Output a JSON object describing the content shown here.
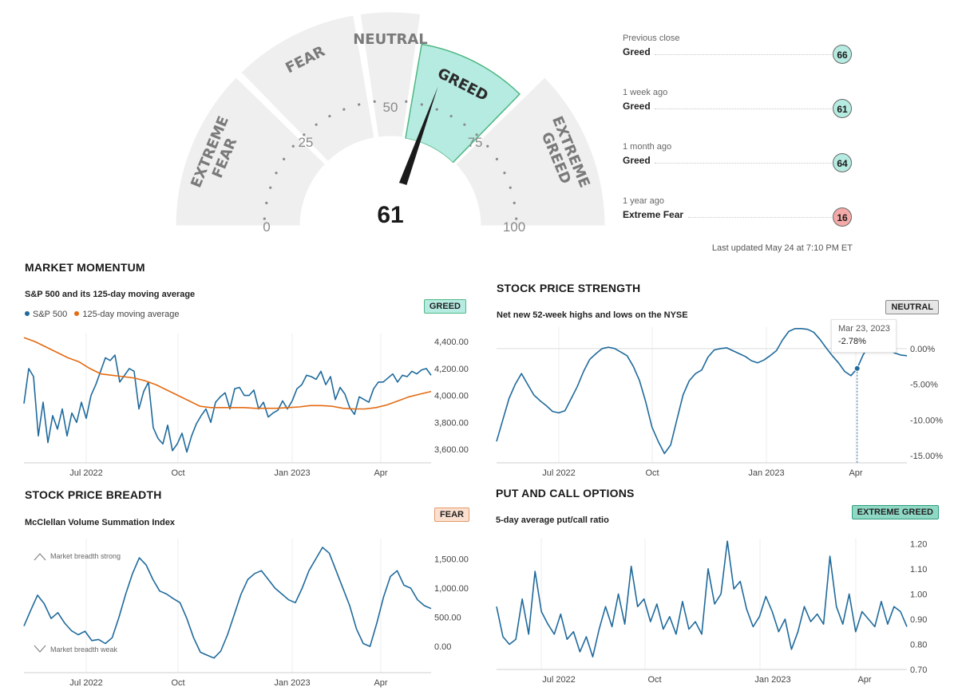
{
  "gauge": {
    "score": "61",
    "score_value": 61,
    "segments": [
      {
        "label": "EXTREME FEAR",
        "lines": [
          "EXTREME",
          "FEAR"
        ],
        "from": 0,
        "to": 25,
        "active": false
      },
      {
        "label": "FEAR",
        "lines": [
          "FEAR"
        ],
        "from": 25,
        "to": 45,
        "active": false
      },
      {
        "label": "NEUTRAL",
        "lines": [
          "NEUTRAL"
        ],
        "from": 45,
        "to": 55,
        "active": false
      },
      {
        "label": "GREED",
        "lines": [
          "GREED"
        ],
        "from": 55,
        "to": 75,
        "active": true
      },
      {
        "label": "EXTREME GREED",
        "lines": [
          "EXTREME",
          "GREED"
        ],
        "from": 75,
        "to": 100,
        "active": false
      }
    ],
    "ticks": [
      {
        "label": "0",
        "value": 0
      },
      {
        "label": "25",
        "value": 25
      },
      {
        "label": "50",
        "value": 50
      },
      {
        "label": "75",
        "value": 75
      },
      {
        "label": "100",
        "value": 100
      }
    ],
    "colors": {
      "segment": "#efefef",
      "active": "#b6ebe1",
      "active_border": "#4fb783",
      "needle": "#1a1a1a"
    }
  },
  "history": [
    {
      "when": "Previous close",
      "rating": "Greed",
      "score": "66",
      "color": "#b6ebe1"
    },
    {
      "when": "1 week ago",
      "rating": "Greed",
      "score": "61",
      "color": "#b6ebe1"
    },
    {
      "when": "1 month ago",
      "rating": "Greed",
      "score": "64",
      "color": "#b6ebe1"
    },
    {
      "when": "1 year ago",
      "rating": "Extreme Fear",
      "score": "16",
      "color": "#f3aaa8"
    }
  ],
  "last_updated": "Last updated May 24 at 7:10 PM ET",
  "panels": {
    "momentum": {
      "title": "MARKET MOMENTUM",
      "subtitle": "S&P 500 and its 125-day moving average",
      "badge": "GREED",
      "badge_bg": "#b6ebe1",
      "badge_border": "#4fb783"
    },
    "strength": {
      "title": "STOCK PRICE STRENGTH",
      "subtitle": "Net new 52-week highs and lows on the NYSE",
      "badge": "NEUTRAL",
      "badge_bg": "#e6e6e6",
      "badge_border": "#8a8a8a"
    },
    "breadth": {
      "title": "STOCK PRICE BREADTH",
      "subtitle": "McClellan Volume Summation Index",
      "badge": "FEAR",
      "badge_bg": "#fbe0cf",
      "badge_border": "#e39a6c"
    },
    "options": {
      "title": "PUT AND CALL OPTIONS",
      "subtitle": "5-day average put/call ratio",
      "badge": "EXTREME GREED",
      "badge_bg": "#8fd9c4",
      "badge_border": "#2f9e7d"
    }
  },
  "tooltip": {
    "date": "Mar 23, 2023",
    "value": "-2.78%"
  },
  "chart_data": [
    {
      "type": "line",
      "xlabel": "",
      "ylabel": "",
      "x_ticks": [
        "Jul 2022",
        "Oct",
        "Jan 2023",
        "Apr"
      ],
      "y_ticks": [
        "3,600.00",
        "3,800.00",
        "4,000.00",
        "4,200.00",
        "4,400.00"
      ],
      "ylim": [
        3500,
        4460
      ],
      "legend": [
        "S&P 500",
        "125-day moving average"
      ],
      "legend_position": "top-left",
      "grid": false,
      "series": [
        {
          "name": "S&P 500",
          "color": "#1f6a9c",
          "values": [
            3940,
            4200,
            4140,
            3700,
            3950,
            3650,
            3850,
            3750,
            3900,
            3700,
            3870,
            3800,
            3950,
            3830,
            4000,
            4080,
            4180,
            4280,
            4260,
            4300,
            4100,
            4150,
            4200,
            4180,
            3900,
            4030,
            4100,
            3760,
            3680,
            3640,
            3780,
            3590,
            3640,
            3720,
            3580,
            3700,
            3790,
            3850,
            3900,
            3800,
            3950,
            3990,
            4020,
            3900,
            4050,
            4060,
            4000,
            4000,
            4040,
            3900,
            3950,
            3840,
            3870,
            3890,
            3960,
            3900,
            3960,
            4050,
            4080,
            4150,
            4140,
            4120,
            4180,
            4080,
            4140,
            3970,
            4060,
            4010,
            3910,
            3860,
            3990,
            3970,
            3950,
            4050,
            4100,
            4100,
            4130,
            4160,
            4100,
            4150,
            4140,
            4180,
            4160,
            4190,
            4200,
            4150
          ]
        },
        {
          "name": "125-day moving average",
          "color": "#e36b12",
          "values": [
            4430,
            4400,
            4360,
            4320,
            4280,
            4250,
            4200,
            4160,
            4150,
            4140,
            4130,
            4110,
            4080,
            4040,
            4000,
            3960,
            3920,
            3910,
            3910,
            3910,
            3910,
            3905,
            3905,
            3905,
            3910,
            3915,
            3925,
            3925,
            3920,
            3905,
            3900,
            3900,
            3910,
            3930,
            3960,
            3990,
            4010,
            4030
          ]
        }
      ]
    },
    {
      "type": "line",
      "xlabel": "",
      "ylabel": "",
      "x_ticks": [
        "Jul 2022",
        "Oct",
        "Jan 2023",
        "Apr"
      ],
      "y_ticks": [
        "0.00%",
        "-5.00%",
        "-10.00%",
        "-15.00%"
      ],
      "ylim": [
        -16,
        3
      ],
      "grid": false,
      "series": [
        {
          "name": "",
          "color": "#1f6a9c",
          "values": [
            -13,
            -10,
            -7,
            -5,
            -3.5,
            -5,
            -6.5,
            -7.3,
            -8,
            -8.8,
            -9,
            -8.7,
            -7,
            -5.3,
            -3.2,
            -1.5,
            -0.7,
            0,
            0.2,
            0,
            -0.5,
            -1,
            -2.5,
            -4.5,
            -7.5,
            -11,
            -13,
            -14.7,
            -13.5,
            -10,
            -6.5,
            -4.5,
            -3.5,
            -3,
            -1.2,
            -0.2,
            0,
            0.1,
            -0.3,
            -0.7,
            -1.1,
            -1.7,
            -2,
            -1.6,
            -1,
            -0.3,
            1.2,
            2.4,
            2.8,
            2.8,
            2.7,
            2.3,
            1.3,
            0.1,
            -1,
            -2,
            -3.2,
            -3.8,
            -2.78,
            -0.8,
            0.4,
            0.6,
            0.3,
            -0.2,
            -0.6,
            -0.9,
            -1
          ]
        }
      ]
    },
    {
      "type": "line",
      "xlabel": "",
      "ylabel": "",
      "x_ticks": [
        "Jul 2022",
        "Oct",
        "Jan 2023",
        "Apr"
      ],
      "y_ticks": [
        "0.00",
        "500.00",
        "1,000.00",
        "1,500.00"
      ],
      "ylim": [
        -450,
        1850
      ],
      "annotations": [
        "Market breadth strong",
        "Market breadth weak"
      ],
      "grid": false,
      "series": [
        {
          "name": "",
          "color": "#1f6a9c",
          "values": [
            350,
            620,
            880,
            730,
            480,
            580,
            400,
            270,
            200,
            260,
            100,
            120,
            50,
            150,
            500,
            900,
            1250,
            1520,
            1400,
            1150,
            950,
            900,
            820,
            750,
            480,
            150,
            -100,
            -150,
            -200,
            -80,
            200,
            550,
            900,
            1150,
            1250,
            1300,
            1150,
            1000,
            900,
            800,
            750,
            1000,
            1300,
            1500,
            1700,
            1600,
            1300,
            1000,
            700,
            300,
            50,
            0,
            400,
            850,
            1200,
            1300,
            1050,
            1000,
            800,
            700,
            650
          ]
        }
      ]
    },
    {
      "type": "line",
      "xlabel": "",
      "ylabel": "",
      "x_ticks": [
        "Jul 2022",
        "Oct",
        "Jan 2023",
        "Apr"
      ],
      "y_ticks": [
        "0.70",
        "0.80",
        "0.90",
        "1.00",
        "1.10",
        "1.20"
      ],
      "ylim": [
        0.7,
        1.22
      ],
      "grid": false,
      "series": [
        {
          "name": "",
          "color": "#1f6a9c",
          "values": [
            0.95,
            0.83,
            0.8,
            0.82,
            0.98,
            0.84,
            1.09,
            0.93,
            0.88,
            0.84,
            0.92,
            0.82,
            0.85,
            0.77,
            0.83,
            0.75,
            0.86,
            0.95,
            0.87,
            1.0,
            0.88,
            1.11,
            0.95,
            0.98,
            0.89,
            0.96,
            0.86,
            0.91,
            0.84,
            0.97,
            0.86,
            0.89,
            0.84,
            1.1,
            0.96,
            1.0,
            1.21,
            1.02,
            1.05,
            0.94,
            0.87,
            0.91,
            0.99,
            0.93,
            0.85,
            0.9,
            0.78,
            0.85,
            0.95,
            0.89,
            0.92,
            0.88,
            1.15,
            0.95,
            0.88,
            1.0,
            0.85,
            0.93,
            0.9,
            0.87,
            0.97,
            0.88,
            0.95,
            0.93,
            0.87
          ]
        }
      ]
    }
  ]
}
